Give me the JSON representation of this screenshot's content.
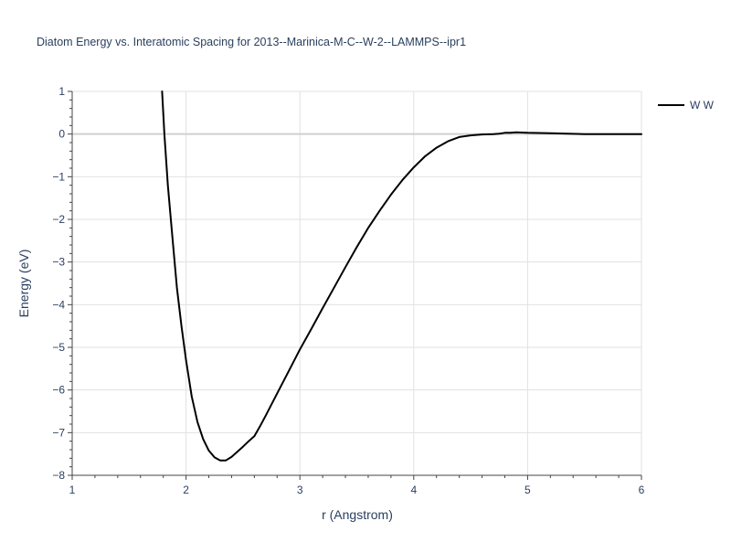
{
  "chart_data": {
    "type": "line",
    "title": "Diatom Energy vs. Interatomic Spacing for 2013--Marinica-M-C--W-2--LAMMPS--ipr1",
    "xlabel": "r (Angstrom)",
    "ylabel": "Energy (eV)",
    "xlim": [
      1,
      6
    ],
    "ylim": [
      -8,
      1
    ],
    "xticks": [
      1,
      2,
      3,
      4,
      5,
      6
    ],
    "xtick_labels": [
      "1",
      "2",
      "3",
      "4",
      "5",
      "6"
    ],
    "yticks": [
      1,
      0,
      -1,
      -2,
      -3,
      -4,
      -5,
      -6,
      -7,
      -8
    ],
    "ytick_labels": [
      "1",
      "0",
      "−1",
      "−2",
      "−3",
      "−4",
      "−5",
      "−6",
      "−7",
      "−8"
    ],
    "grid": true,
    "legend_position": "top-right",
    "colors": {
      "line": "#000000",
      "grid": "#e1e1e1",
      "zeroline": "#d0d0d0",
      "text": "#2a3f5f",
      "axis": "#444444"
    },
    "series": [
      {
        "name": "W W",
        "x": [
          1.79,
          1.81,
          1.84,
          1.88,
          1.92,
          1.96,
          2.0,
          2.05,
          2.1,
          2.15,
          2.2,
          2.25,
          2.3,
          2.35,
          2.4,
          2.45,
          2.5,
          2.55,
          2.6,
          2.65,
          2.7,
          2.8,
          2.9,
          3.0,
          3.1,
          3.2,
          3.3,
          3.4,
          3.5,
          3.6,
          3.7,
          3.8,
          3.9,
          4.0,
          4.1,
          4.2,
          4.3,
          4.4,
          4.5,
          4.6,
          4.7,
          4.75,
          4.78,
          4.8,
          4.85,
          4.9,
          5.0,
          5.2,
          5.5,
          5.8,
          6.0
        ],
        "y": [
          1.0,
          0.0,
          -1.2,
          -2.4,
          -3.6,
          -4.5,
          -5.3,
          -6.15,
          -6.75,
          -7.15,
          -7.42,
          -7.58,
          -7.65,
          -7.65,
          -7.57,
          -7.45,
          -7.33,
          -7.2,
          -7.08,
          -6.85,
          -6.6,
          -6.08,
          -5.57,
          -5.05,
          -4.57,
          -4.08,
          -3.6,
          -3.12,
          -2.65,
          -2.2,
          -1.8,
          -1.42,
          -1.08,
          -0.78,
          -0.52,
          -0.32,
          -0.17,
          -0.07,
          -0.03,
          -0.01,
          0.0,
          0.01,
          0.02,
          0.03,
          0.03,
          0.04,
          0.03,
          0.02,
          0.0,
          0.0,
          0.0
        ]
      }
    ]
  }
}
